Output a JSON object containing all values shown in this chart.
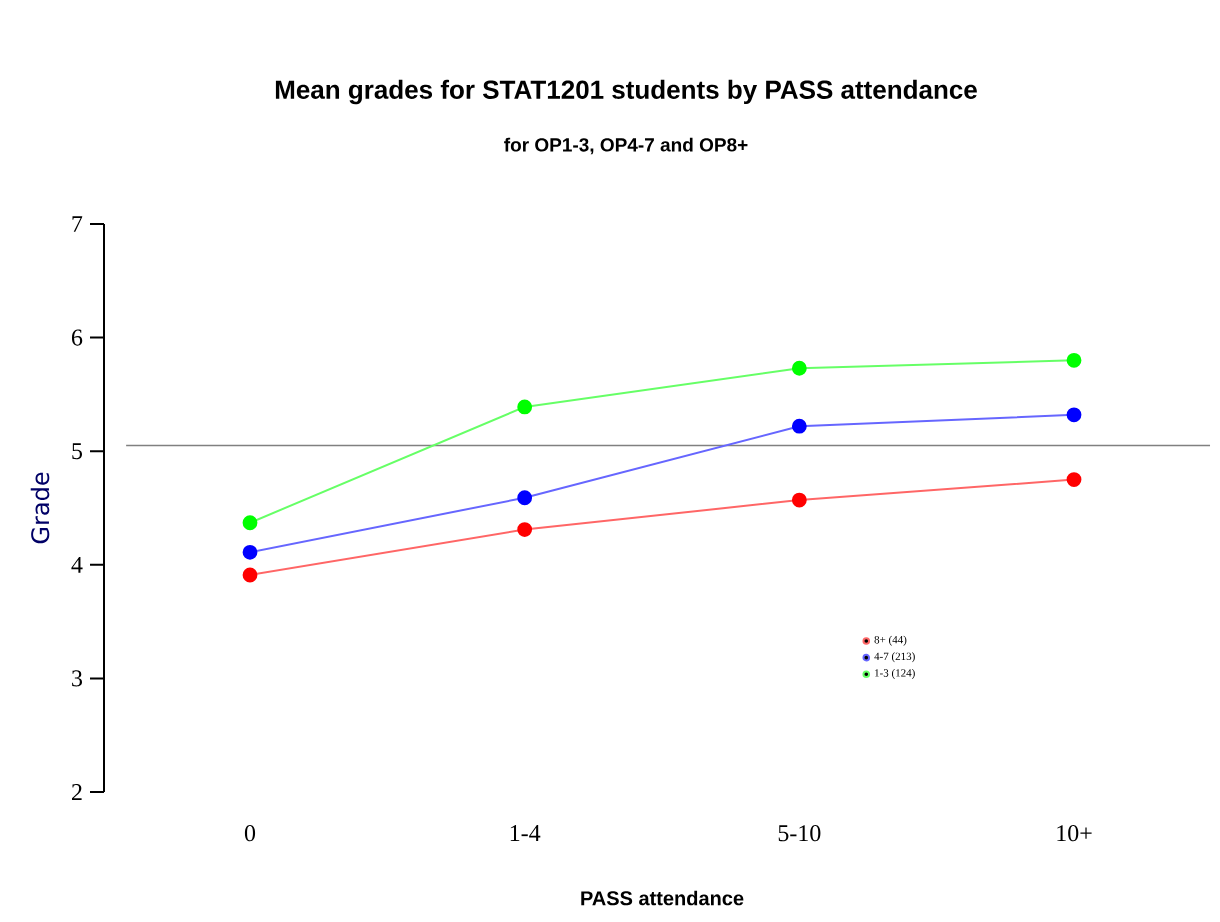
{
  "chart_data": {
    "type": "line",
    "title": "Mean grades for STAT1201 students by PASS attendance",
    "subtitle": "for OP1-3, OP4-7 and OP8+",
    "xlabel": "PASS attendance",
    "ylabel": "Grade",
    "categories": [
      "0",
      "1-4",
      "5-10",
      "10+"
    ],
    "series": [
      {
        "name": "8+ (44)",
        "color": "#ff0000",
        "values": [
          3.91,
          4.31,
          4.57,
          4.75
        ]
      },
      {
        "name": "4-7 (213)",
        "color": "#0000ff",
        "values": [
          4.11,
          4.59,
          5.22,
          5.32
        ]
      },
      {
        "name": "1-3 (124)",
        "color": "#00ff00",
        "values": [
          4.37,
          5.39,
          5.73,
          5.8
        ]
      }
    ],
    "ylim": [
      2,
      7
    ],
    "yticks": [
      2,
      3,
      4,
      5,
      6,
      7
    ],
    "ref_lines": [
      {
        "axis": "y",
        "value": 5.05,
        "color": "#808080"
      }
    ],
    "marker": "circle",
    "legend": "right",
    "grid": false
  }
}
